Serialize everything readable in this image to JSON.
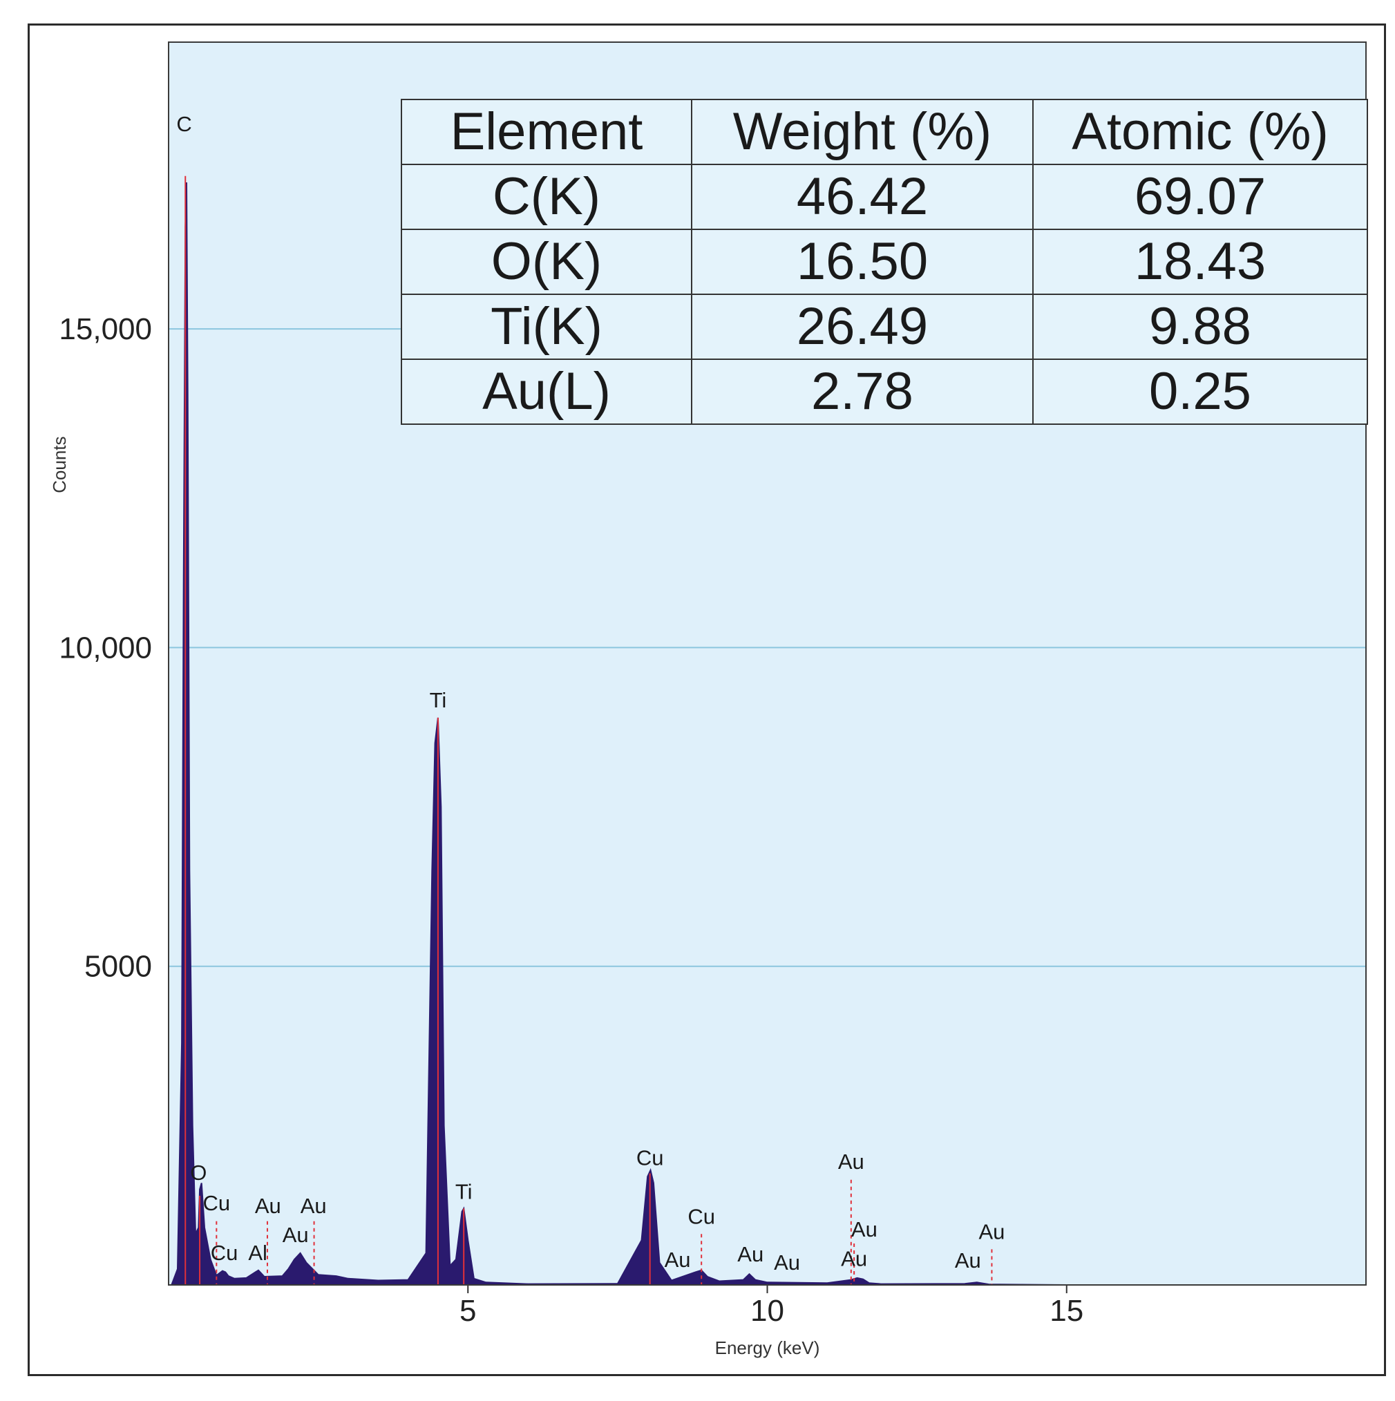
{
  "chart_data": {
    "type": "area",
    "xlabel": "Energy (keV)",
    "ylabel": "Counts",
    "xlim": [
      0,
      20
    ],
    "ylim": [
      0,
      19500
    ],
    "x_ticks": [
      "5",
      "10",
      "15"
    ],
    "y_ticks": [
      "5000",
      "10,000",
      "15,000"
    ],
    "y_tick_values": [
      5000,
      10000,
      15000
    ],
    "grid": "horizontal",
    "colors": {
      "fill": "#2a1a6e",
      "plot_bg": "#dff0fa",
      "marker_line": "#e0303a",
      "grid": "#8cc6de"
    },
    "series": [
      {
        "values_note": "",
        "x": [
          0.05,
          0.15,
          0.22,
          0.25,
          0.28,
          0.3,
          0.32,
          0.35,
          0.4,
          0.45,
          0.5,
          0.52,
          0.55,
          0.6,
          0.7,
          0.8,
          0.9,
          0.95,
          1.0,
          1.1,
          1.3,
          1.45,
          1.5,
          1.6,
          1.9,
          2.0,
          2.1,
          2.2,
          2.3,
          2.5,
          2.8,
          3.0,
          3.5,
          4.0,
          4.3,
          4.4,
          4.45,
          4.5,
          4.55,
          4.6,
          4.7,
          4.8,
          4.9,
          4.93,
          5.0,
          5.1,
          5.3,
          6.0,
          7.5,
          7.9,
          8.0,
          8.05,
          8.1,
          8.2,
          8.4,
          8.8,
          8.9,
          9.0,
          9.2,
          9.6,
          9.7,
          9.8,
          10.0,
          11.0,
          11.4,
          11.5,
          11.6,
          11.7,
          11.9,
          13.3,
          13.5,
          13.7,
          15.0,
          20.0
        ],
        "y": [
          0,
          250,
          3800,
          11000,
          16600,
          17300,
          14000,
          6500,
          2500,
          800,
          900,
          1500,
          1600,
          900,
          400,
          150,
          220,
          200,
          140,
          100,
          110,
          200,
          230,
          130,
          140,
          250,
          400,
          500,
          350,
          160,
          140,
          100,
          70,
          80,
          500,
          6500,
          8500,
          8900,
          7500,
          2500,
          300,
          400,
          1150,
          1200,
          700,
          100,
          40,
          15,
          20,
          700,
          1700,
          1800,
          1600,
          350,
          70,
          200,
          230,
          130,
          60,
          80,
          170,
          80,
          40,
          30,
          80,
          110,
          90,
          30,
          15,
          20,
          40,
          10,
          0,
          0
        ]
      }
    ],
    "peak_labels": [
      {
        "text": "C",
        "x": 0.26,
        "y": 18100
      },
      {
        "text": "O",
        "x": 0.5,
        "y": 1650
      },
      {
        "text": "Cu",
        "x": 0.8,
        "y": 1170
      },
      {
        "text": "Cu",
        "x": 0.93,
        "y": 390
      },
      {
        "text": "Al",
        "x": 1.49,
        "y": 390
      },
      {
        "text": "Au",
        "x": 1.66,
        "y": 1130
      },
      {
        "text": "Au",
        "x": 2.12,
        "y": 670
      },
      {
        "text": "Au",
        "x": 2.42,
        "y": 1130
      },
      {
        "text": "Ti",
        "x": 4.5,
        "y": 9060
      },
      {
        "text": "Ti",
        "x": 4.93,
        "y": 1350
      },
      {
        "text": "Cu",
        "x": 8.04,
        "y": 1880
      },
      {
        "text": "Au",
        "x": 8.5,
        "y": 280
      },
      {
        "text": "Cu",
        "x": 8.9,
        "y": 960
      },
      {
        "text": "Au",
        "x": 9.72,
        "y": 370
      },
      {
        "text": "Au",
        "x": 10.33,
        "y": 240
      },
      {
        "text": "Au",
        "x": 11.4,
        "y": 1820
      },
      {
        "text": "Au",
        "x": 11.62,
        "y": 760
      },
      {
        "text": "Au",
        "x": 11.45,
        "y": 300
      },
      {
        "text": "Au",
        "x": 13.35,
        "y": 270
      },
      {
        "text": "Au",
        "x": 13.75,
        "y": 720
      }
    ],
    "marker_lines": [
      {
        "x": 0.28,
        "y_top": 17400,
        "style": "solid"
      },
      {
        "x": 0.52,
        "y_top": 1400,
        "style": "solid"
      },
      {
        "x": 0.8,
        "y_top": 1000,
        "style": "dashed"
      },
      {
        "x": 1.65,
        "y_top": 1000,
        "style": "dashed"
      },
      {
        "x": 2.43,
        "y_top": 1000,
        "style": "dashed"
      },
      {
        "x": 4.5,
        "y_top": 8900,
        "style": "solid"
      },
      {
        "x": 4.93,
        "y_top": 1200,
        "style": "solid"
      },
      {
        "x": 8.04,
        "y_top": 1750,
        "style": "solid"
      },
      {
        "x": 8.9,
        "y_top": 800,
        "style": "dashed"
      },
      {
        "x": 11.4,
        "y_top": 1650,
        "style": "dashed"
      },
      {
        "x": 11.45,
        "y_top": 650,
        "style": "dashed"
      },
      {
        "x": 13.75,
        "y_top": 560,
        "style": "dashed"
      }
    ]
  },
  "table": {
    "headers": [
      "Element",
      "Weight (%)",
      "Atomic (%)"
    ],
    "rows": [
      [
        "C(K)",
        "46.42",
        "69.07"
      ],
      [
        "O(K)",
        "16.50",
        "18.43"
      ],
      [
        "Ti(K)",
        "26.49",
        "9.88"
      ],
      [
        "Au(L)",
        "2.78",
        "0.25"
      ]
    ]
  }
}
